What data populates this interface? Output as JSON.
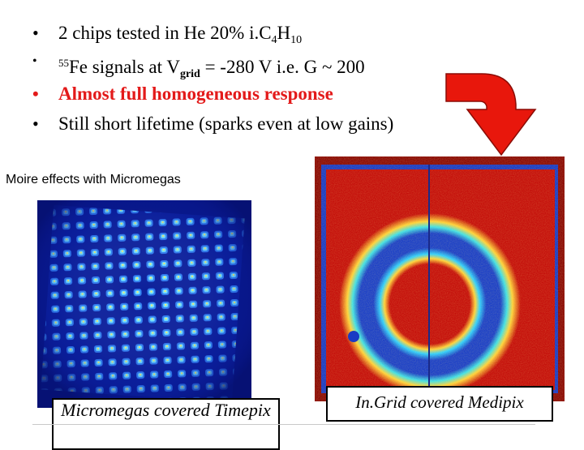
{
  "bullets": {
    "b1": {
      "pre": "2 chips tested in He 20% i.C",
      "s1": "4",
      "mid": "H",
      "s2": "10"
    },
    "b2": {
      "sup": "55",
      "pre": "Fe signals at V",
      "sub": "grid",
      "post": " = -280 V i.e. G ~ 200"
    },
    "b3": "Almost full homogeneous response",
    "b4": "Still short lifetime (sparks even at low gains)",
    "dot": "•"
  },
  "moire_label": "Moire effects with Micromegas",
  "captions": {
    "left": "Micromegas covered Timepix",
    "right": "In.Grid covered Medipix"
  },
  "colors": {
    "highlight": "#e31a1a",
    "arrow": "#e8170c",
    "left_bg": "#0a1a9e",
    "right_bg": "#c40e0a"
  }
}
